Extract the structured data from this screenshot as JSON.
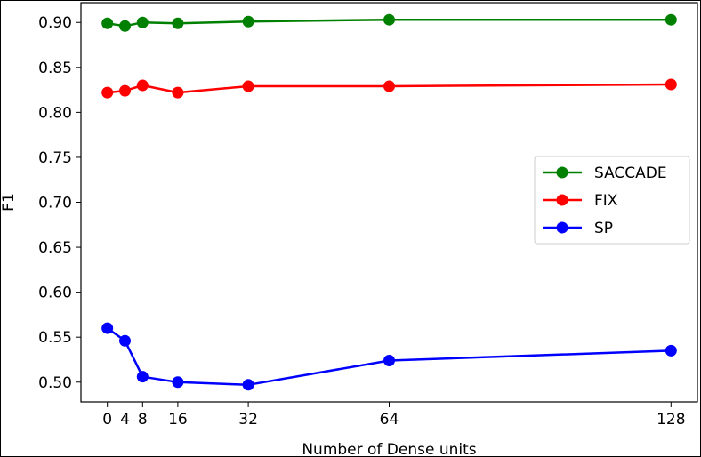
{
  "chart_data": {
    "type": "line",
    "title": "",
    "xlabel": "Number of Dense units",
    "ylabel": "F1",
    "x": [
      0,
      4,
      8,
      16,
      32,
      64,
      128
    ],
    "x_ticks": [
      0,
      4,
      8,
      16,
      32,
      64,
      128
    ],
    "x_tick_labels": [
      "0",
      "4",
      "8",
      "16",
      "32",
      "64",
      "128"
    ],
    "xlim": [
      -6,
      134
    ],
    "ylim": [
      0.478,
      0.922
    ],
    "y_ticks": [
      0.5,
      0.55,
      0.6,
      0.65,
      0.7,
      0.75,
      0.8,
      0.85,
      0.9
    ],
    "y_tick_labels": [
      "0.50",
      "0.55",
      "0.60",
      "0.65",
      "0.70",
      "0.75",
      "0.80",
      "0.85",
      "0.90"
    ],
    "grid": false,
    "legend_position": "center-right",
    "series": [
      {
        "name": "SACCADE",
        "color": "#008000",
        "values": [
          0.899,
          0.896,
          0.9,
          0.899,
          0.901,
          0.903,
          0.903
        ]
      },
      {
        "name": "FIX",
        "color": "#ff0000",
        "values": [
          0.822,
          0.824,
          0.83,
          0.822,
          0.829,
          0.829,
          0.831
        ]
      },
      {
        "name": "SP",
        "color": "#0000ff",
        "values": [
          0.56,
          0.546,
          0.506,
          0.5,
          0.497,
          0.524,
          0.535
        ]
      }
    ]
  }
}
